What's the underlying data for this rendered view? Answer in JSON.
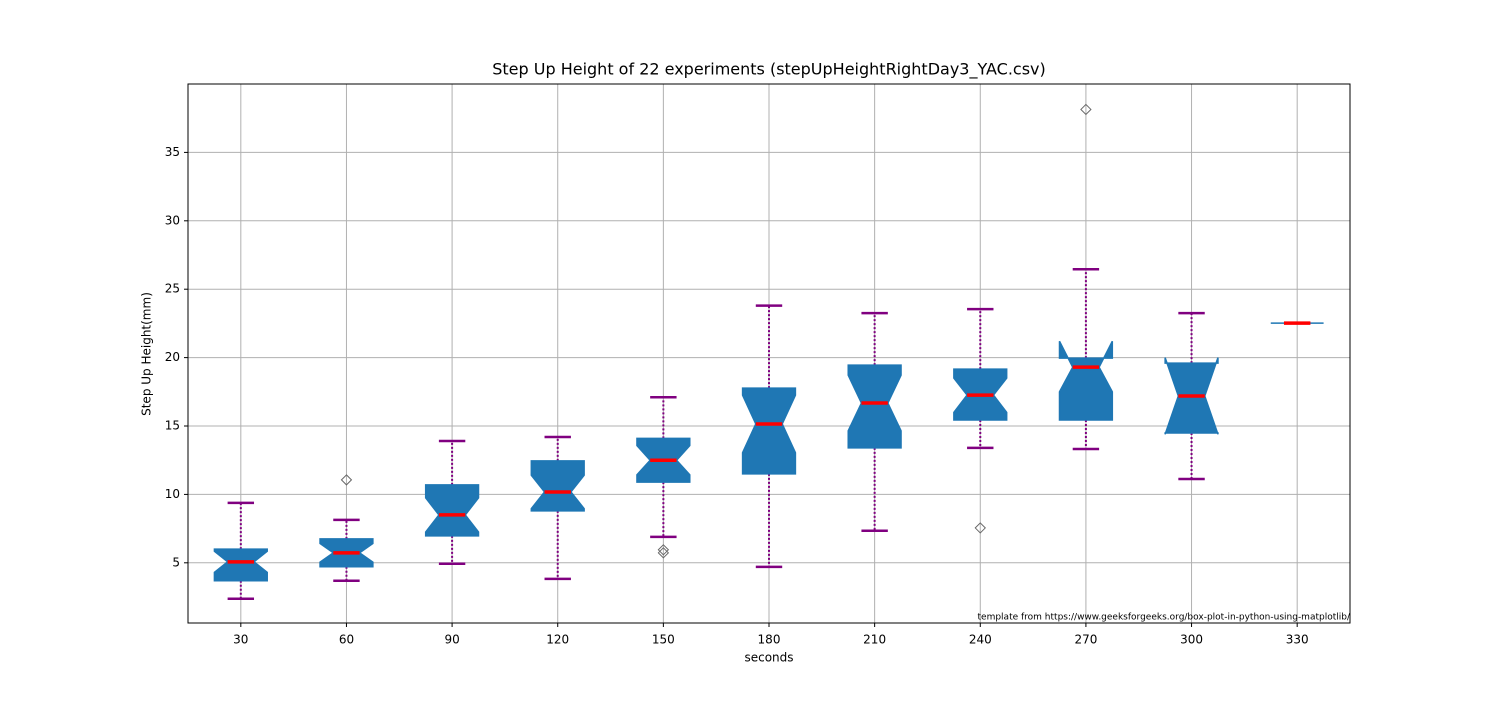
{
  "chart_data": {
    "type": "box",
    "title": "Step Up Height of 22 experiments (stepUpHeightRightDay3_YAC.csv)",
    "x_label": "seconds",
    "y_label": "Step Up Height(mm)",
    "annotation": "template from https://www.geeksforgeeks.org/box-plot-in-python-using-matplotlib/",
    "categories": [
      "30",
      "60",
      "90",
      "120",
      "150",
      "180",
      "210",
      "240",
      "270",
      "300",
      "330"
    ],
    "boxes": [
      {
        "whislo": 2.37,
        "q1": 3.69,
        "med": 5.07,
        "q3": 6.0,
        "whishi": 9.38,
        "notch": [
          4.3,
          5.84
        ],
        "fliers": []
      },
      {
        "whislo": 3.69,
        "q1": 4.71,
        "med": 5.73,
        "q3": 6.75,
        "whishi": 8.14,
        "notch": [
          5.05,
          6.41
        ],
        "fliers": [
          11.06
        ]
      },
      {
        "whislo": 4.93,
        "q1": 6.97,
        "med": 8.5,
        "q3": 10.7,
        "whishi": 13.9,
        "notch": [
          7.25,
          9.75
        ],
        "fliers": []
      },
      {
        "whislo": 3.83,
        "q1": 8.8,
        "med": 10.18,
        "q3": 12.45,
        "whishi": 14.2,
        "notch": [
          8.96,
          11.4
        ],
        "fliers": []
      },
      {
        "whislo": 6.9,
        "q1": 10.9,
        "med": 12.5,
        "q3": 14.1,
        "whishi": 17.1,
        "notch": [
          11.43,
          13.57
        ],
        "fliers": [
          5.95,
          5.73
        ]
      },
      {
        "whislo": 4.7,
        "q1": 11.5,
        "med": 15.15,
        "q3": 17.77,
        "whishi": 23.8,
        "notch": [
          13.05,
          17.25
        ],
        "fliers": []
      },
      {
        "whislo": 7.34,
        "q1": 13.4,
        "med": 16.68,
        "q3": 19.45,
        "whishi": 23.25,
        "notch": [
          14.65,
          18.71
        ],
        "fliers": []
      },
      {
        "whislo": 13.4,
        "q1": 15.44,
        "med": 17.26,
        "q3": 19.16,
        "whishi": 23.54,
        "notch": [
          16.0,
          18.5
        ],
        "fliers": [
          7.55
        ]
      },
      {
        "whislo": 13.32,
        "q1": 15.44,
        "med": 19.3,
        "q3": 19.96,
        "whishi": 26.46,
        "notch": [
          17.5,
          21.2
        ],
        "fliers": [
          38.14
        ]
      },
      {
        "whislo": 11.13,
        "q1": 14.49,
        "med": 17.19,
        "q3": 19.6,
        "whishi": 23.25,
        "notch": [
          14.4,
          20.0
        ],
        "fliers": []
      },
      {
        "whislo": 22.52,
        "q1": 22.52,
        "med": 22.52,
        "q3": 22.52,
        "whishi": 22.52,
        "notch": [
          22.52,
          22.52
        ],
        "fliers": []
      }
    ],
    "box_color": "#1f77b4",
    "median_color": "#ff0000",
    "whisker_color": "#800080",
    "flier_color": "#666666",
    "ylim": [
      0.6,
      40
    ],
    "yticks": [
      5,
      10,
      15,
      20,
      25,
      30,
      35
    ],
    "grid": true
  }
}
